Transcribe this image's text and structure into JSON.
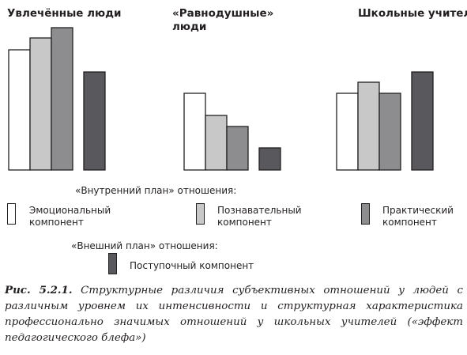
{
  "chart_data": {
    "type": "bar",
    "groups": [
      {
        "title_lines": [
          "Увлечённые люди"
        ],
        "values": [
          152,
          167,
          180,
          124
        ]
      },
      {
        "title_lines": [
          "«Равнодушные»",
          "люди"
        ],
        "values": [
          97,
          69,
          55,
          28
        ]
      },
      {
        "title_lines": [
          "Школьные учителя"
        ],
        "values": [
          97,
          111,
          97,
          124
        ]
      }
    ],
    "series": [
      {
        "name": "Эмоциональный компонент",
        "color": "#ffffff"
      },
      {
        "name": "Познавательный компонент",
        "color": "#c8c8c8"
      },
      {
        "name": "Практический компонент",
        "color": "#8d8d8f"
      },
      {
        "name": "Поступочный компонент",
        "color": "#59585c"
      }
    ],
    "ylim": [
      0,
      190
    ],
    "grid": false
  },
  "legend": {
    "inner_plan_label": "«Внутренний план»  отношения:",
    "outer_plan_label": "«Внешний план»  отношения:",
    "items": [
      {
        "lines": [
          "Эмоциональный",
          "компонент"
        ],
        "color": "#ffffff"
      },
      {
        "lines": [
          "Познавательный",
          "компонент"
        ],
        "color": "#c8c8c8"
      },
      {
        "lines": [
          "Практический",
          "компонент"
        ],
        "color": "#8d8d8f"
      },
      {
        "lines": [
          "Поступочный компонент"
        ],
        "color": "#59585c"
      }
    ]
  },
  "caption": {
    "label": "Рис. 5.2.1.",
    "text": "Структурные различия субъективных отношений у людей с различным уровнем их интенсивности и структурная характеристика профессионально значимых отношений у школьных учителей («эффект педагогического блефа»)"
  },
  "colors": {
    "stroke": "#231f20",
    "background": "#ffffff"
  }
}
